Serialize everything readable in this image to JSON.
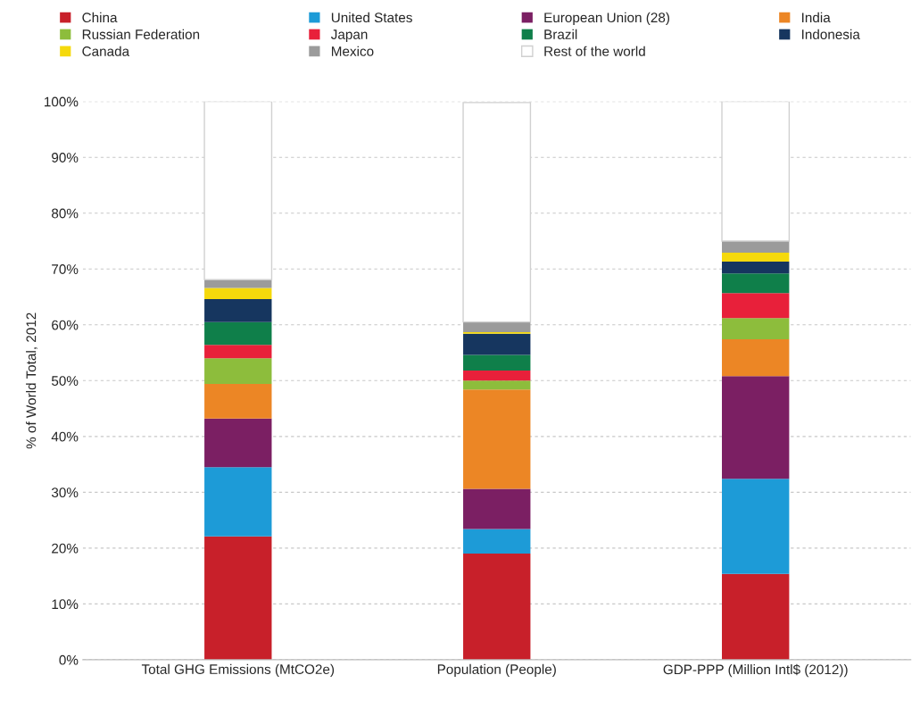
{
  "chart_data": {
    "type": "bar",
    "stacked": true,
    "ylabel": "% of World Total, 2012",
    "categories": [
      "Total GHG Emissions (MtCO2e)",
      "Population (People)",
      "GDP-PPP (Million Intl$ (2012))"
    ],
    "series": [
      {
        "name": "China",
        "color": "#c8202a",
        "values": [
          22.1,
          19.0,
          15.4
        ]
      },
      {
        "name": "United States",
        "color": "#1d9bd7",
        "values": [
          12.4,
          4.4,
          17.0
        ]
      },
      {
        "name": "European Union (28)",
        "color": "#7b1f63",
        "values": [
          8.7,
          7.2,
          18.4
        ]
      },
      {
        "name": "India",
        "color": "#ec8625",
        "values": [
          6.2,
          17.8,
          6.6
        ]
      },
      {
        "name": "Russian Federation",
        "color": "#8dbd3c",
        "values": [
          4.6,
          1.6,
          3.8
        ]
      },
      {
        "name": "Japan",
        "color": "#e8203a",
        "values": [
          2.4,
          1.8,
          4.5
        ]
      },
      {
        "name": "Brazil",
        "color": "#0f7f4a",
        "values": [
          4.1,
          2.8,
          3.5
        ]
      },
      {
        "name": "Indonesia",
        "color": "#16365f",
        "values": [
          4.1,
          3.8,
          2.1
        ]
      },
      {
        "name": "Canada",
        "color": "#f5d90c",
        "values": [
          2.0,
          0.3,
          1.6
        ]
      },
      {
        "name": "Mexico",
        "color": "#9b9b9b",
        "values": [
          1.5,
          1.8,
          2.1
        ]
      },
      {
        "name": "Rest of the world",
        "color": "#ffffff",
        "values": [
          31.9,
          39.3,
          25.0
        ]
      }
    ],
    "ylim": [
      0,
      100
    ],
    "yticks": [
      {
        "value": 0,
        "label": "0%"
      },
      {
        "value": 10,
        "label": "10%"
      },
      {
        "value": 20,
        "label": "20%"
      },
      {
        "value": 30,
        "label": "30%"
      },
      {
        "value": 40,
        "label": "40%"
      },
      {
        "value": 50,
        "label": "50%"
      },
      {
        "value": 60,
        "label": "60%"
      },
      {
        "value": 70,
        "label": "70%"
      },
      {
        "value": 80,
        "label": "80%"
      },
      {
        "value": 90,
        "label": "90%"
      },
      {
        "value": 100,
        "label": "100%"
      }
    ],
    "grid": "y",
    "legend": "top"
  }
}
